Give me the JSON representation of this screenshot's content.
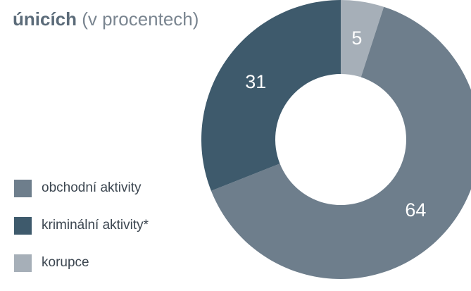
{
  "chart_data": {
    "type": "pie",
    "title_bold": "únicích",
    "title_rest": " (v procentech)",
    "categories": [
      "korupce",
      "obchodní aktivity",
      "kriminální aktivity*"
    ],
    "values": [
      5,
      64,
      31
    ],
    "colors": [
      "#a6afb8",
      "#6e7e8c",
      "#3e5a6c"
    ],
    "legend": [
      {
        "label": "obchodní aktivity",
        "color": "#6e7e8c"
      },
      {
        "label": "kriminální aktivity*",
        "color": "#3e5a6c"
      },
      {
        "label": "korupce",
        "color": "#a6afb8"
      }
    ],
    "legend_position": "left"
  }
}
